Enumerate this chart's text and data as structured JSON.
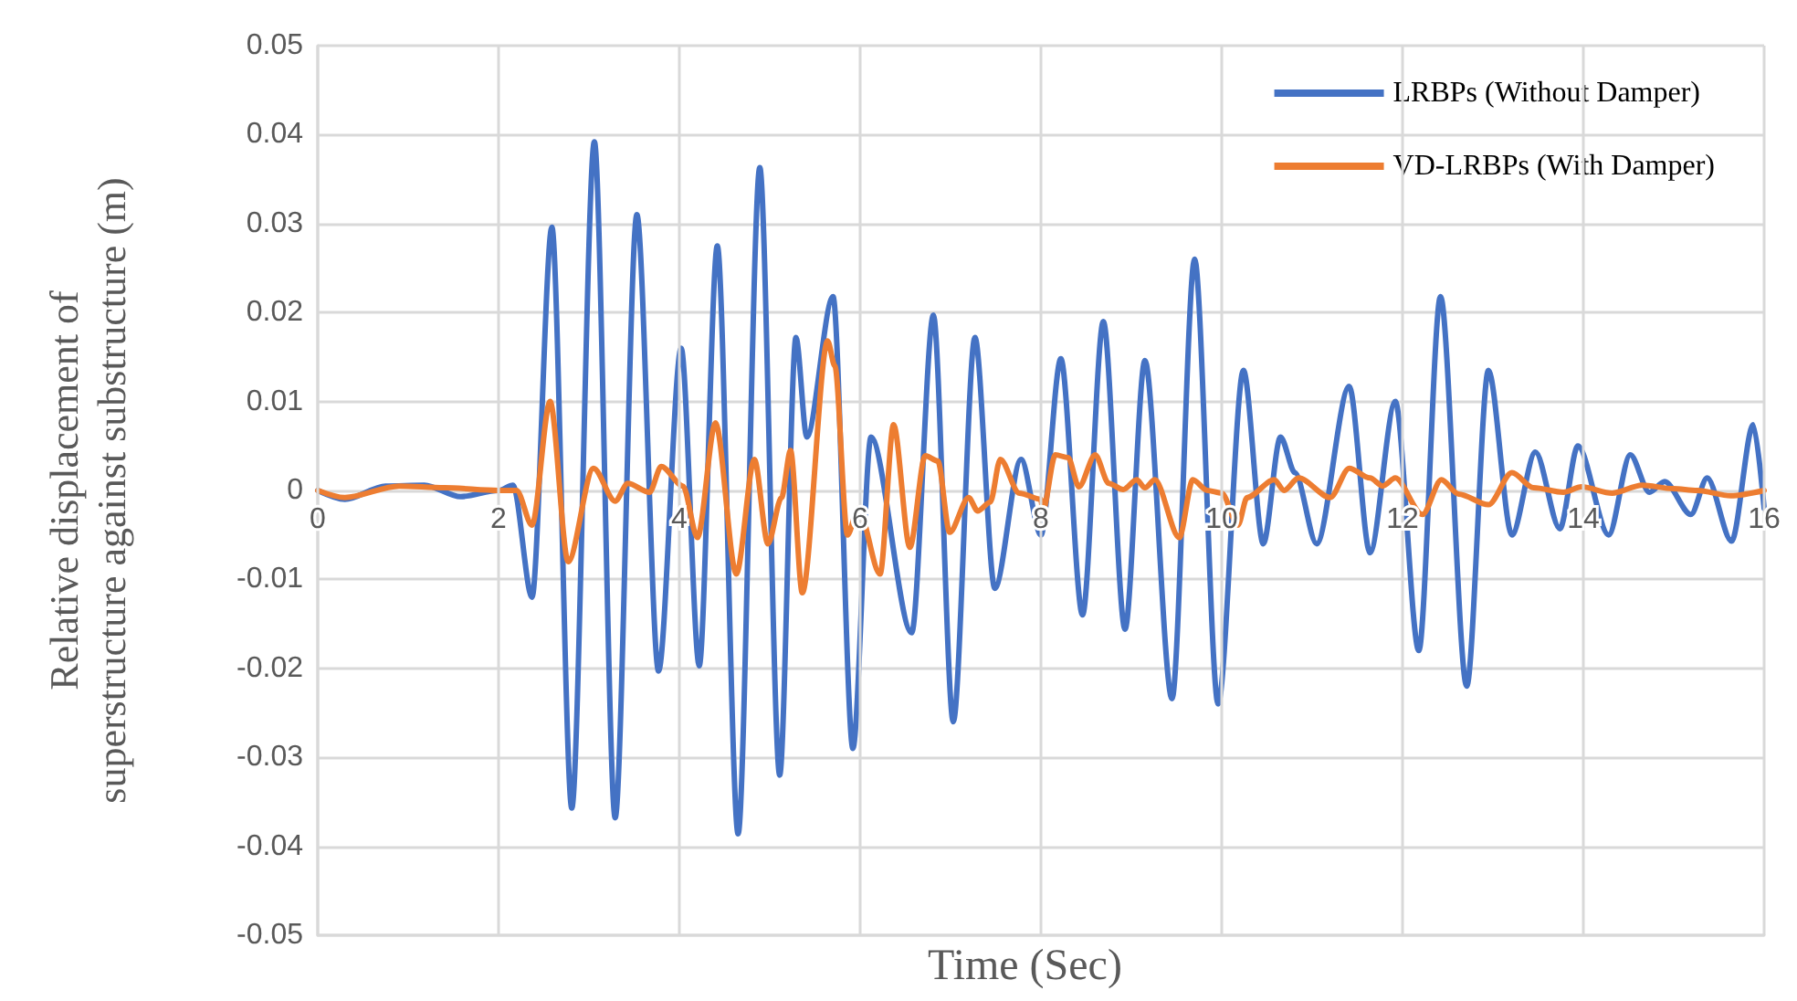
{
  "chart_data": {
    "type": "line",
    "xlabel": "Time (Sec)",
    "ylabel": "Relative displacement of\nsuperstructure against substructure (m)",
    "xlim": [
      0,
      16
    ],
    "xticks": [
      0,
      2,
      4,
      6,
      8,
      10,
      12,
      14,
      16
    ],
    "ylim": [
      -0.05,
      0.05
    ],
    "yticks": [
      -0.05,
      -0.04,
      -0.03,
      -0.02,
      -0.01,
      0,
      0.01,
      0.02,
      0.03,
      0.04,
      0.05
    ],
    "grid": true,
    "legend": "top right",
    "marker": "none",
    "line_style": "solid",
    "series": [
      {
        "name": "LRBPs (Without Damper)",
        "color": "#4472c4",
        "x": [
          0,
          0.3,
          0.75,
          1.18,
          1.58,
          2.0,
          2.16,
          2.37,
          2.59,
          2.81,
          3.06,
          3.29,
          3.53,
          3.77,
          4.02,
          4.22,
          4.42,
          4.65,
          4.89,
          5.11,
          5.29,
          5.41,
          5.7,
          5.92,
          6.12,
          6.57,
          6.81,
          7.03,
          7.27,
          7.49,
          7.78,
          8.0,
          8.22,
          8.46,
          8.69,
          8.93,
          9.15,
          9.45,
          9.7,
          9.96,
          10.24,
          10.46,
          10.65,
          10.81,
          11.05,
          11.41,
          11.64,
          11.92,
          12.18,
          12.42,
          12.71,
          12.95,
          13.21,
          13.47,
          13.74,
          13.94,
          14.28,
          14.52,
          14.73,
          14.9,
          15.19,
          15.37,
          15.64,
          15.88,
          16.0
        ],
        "values": [
          0,
          -0.001,
          0.0005,
          0.0006,
          -0.0007,
          0,
          0.0006,
          -0.012,
          0.0296,
          -0.0357,
          0.0392,
          -0.0368,
          0.031,
          -0.0203,
          0.016,
          -0.0197,
          0.0275,
          -0.0386,
          0.0363,
          -0.032,
          0.0172,
          0.006,
          0.0218,
          -0.029,
          0.006,
          -0.016,
          0.0197,
          -0.026,
          0.0172,
          -0.011,
          0.0035,
          -0.005,
          0.0148,
          -0.014,
          0.019,
          -0.0156,
          0.0146,
          -0.0234,
          0.026,
          -0.024,
          0.0135,
          -0.006,
          0.006,
          0.002,
          -0.006,
          0.0117,
          -0.007,
          0.01,
          -0.018,
          0.0218,
          -0.022,
          0.0135,
          -0.005,
          0.0043,
          -0.0043,
          0.005,
          -0.005,
          0.004,
          -0.0002,
          0.001,
          -0.0027,
          0.0014,
          -0.0057,
          0.0074,
          -0.002
        ]
      },
      {
        "name": "VD-LRBPs (With Damper)",
        "color": "#ed7d31",
        "x": [
          0,
          0.3,
          0.9,
          1.4,
          2.0,
          2.2,
          2.37,
          2.57,
          2.77,
          3.05,
          3.29,
          3.43,
          3.67,
          3.8,
          4.04,
          4.2,
          4.4,
          4.63,
          4.83,
          4.98,
          5.13,
          5.23,
          5.36,
          5.64,
          5.72,
          5.86,
          5.98,
          6.22,
          6.37,
          6.55,
          6.72,
          6.86,
          6.99,
          7.2,
          7.3,
          7.44,
          7.55,
          7.76,
          8.0,
          8.02,
          8.16,
          8.3,
          8.42,
          8.6,
          8.75,
          8.91,
          9.06,
          9.15,
          9.26,
          9.53,
          9.68,
          9.84,
          10.0,
          10.18,
          10.28,
          10.58,
          10.69,
          10.85,
          11.2,
          11.41,
          11.64,
          11.78,
          11.92,
          12.22,
          12.43,
          12.62,
          12.95,
          13.21,
          13.45,
          13.78,
          13.98,
          14.32,
          14.65,
          14.99,
          15.26,
          15.63,
          16.0
        ],
        "values": [
          0,
          -0.0008,
          0.0005,
          0.0003,
          0,
          0,
          -0.0039,
          0.01,
          -0.008,
          0.0025,
          -0.0012,
          0.0008,
          -0.0002,
          0.0027,
          0.0005,
          -0.0053,
          0.0076,
          -0.0094,
          0.0035,
          -0.006,
          -0.0008,
          0.0045,
          -0.0115,
          0.0168,
          0.014,
          -0.005,
          -0.002,
          -0.0094,
          0.0074,
          -0.0064,
          0.0039,
          0.0033,
          -0.0047,
          -0.0008,
          -0.0023,
          -0.0013,
          0.0035,
          -0.0003,
          -0.001,
          -0.0023,
          0.004,
          0.0037,
          0.0004,
          0.004,
          0.0008,
          0.0001,
          0.0012,
          0.0003,
          0.0012,
          -0.0053,
          0.0012,
          0,
          -0.0003,
          -0.0039,
          -0.0008,
          0.0012,
          0,
          0.0014,
          -0.0008,
          0.0025,
          0.0014,
          0.0005,
          0.0014,
          -0.0027,
          0.0012,
          -0.0004,
          -0.0016,
          0.002,
          0.0003,
          -0.0002,
          0.0004,
          -0.0003,
          0.0006,
          0.0002,
          0,
          -0.0006,
          0
        ]
      }
    ]
  }
}
